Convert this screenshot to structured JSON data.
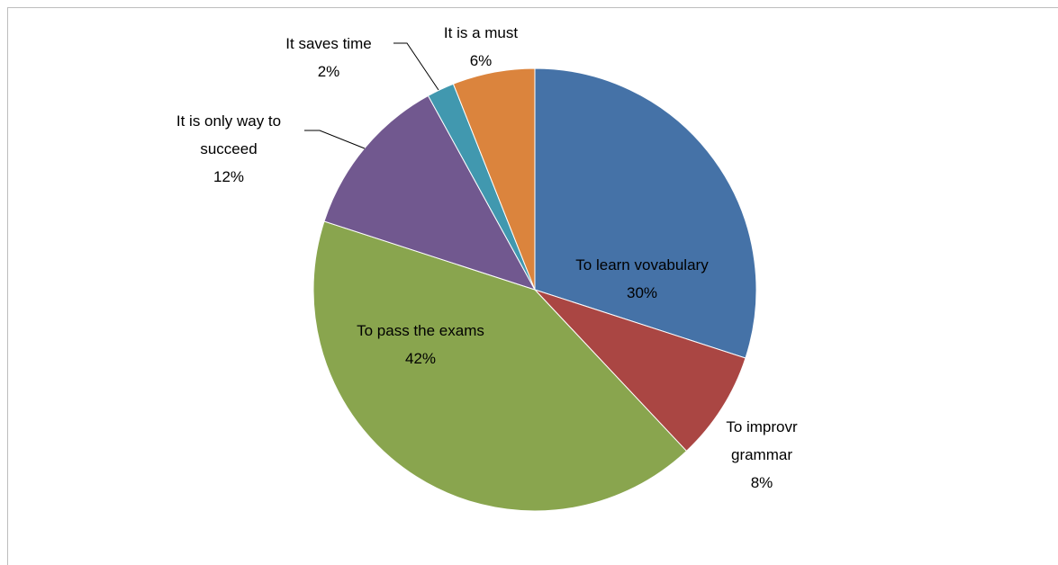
{
  "chart_data": {
    "type": "pie",
    "categories": [
      "To learn vovabulary",
      "To improvr grammar",
      "To pass the exams",
      "It is only way to succeed",
      "It saves time",
      "It is a must"
    ],
    "values": [
      30,
      8,
      42,
      12,
      2,
      6
    ],
    "value_labels": [
      "30%",
      "8%",
      "42%",
      "12%",
      "2%",
      "6%"
    ],
    "colors": [
      "#4572a7",
      "#aa4643",
      "#89a54e",
      "#71588f",
      "#4198af",
      "#db843d"
    ]
  }
}
